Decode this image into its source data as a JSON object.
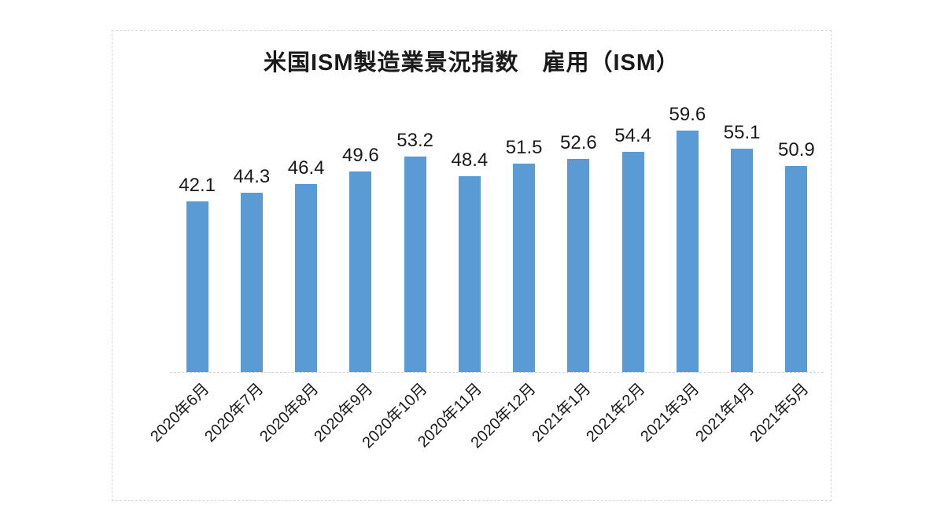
{
  "chart_data": {
    "type": "bar",
    "title": "米国ISM製造業景況指数　雇用（ISM）",
    "categories": [
      "2020年6月",
      "2020年7月",
      "2020年8月",
      "2020年9月",
      "2020年10月",
      "2020年11月",
      "2020年12月",
      "2021年1月",
      "2021年2月",
      "2021年3月",
      "2021年4月",
      "2021年5月"
    ],
    "values": [
      42.1,
      44.3,
      46.4,
      49.6,
      53.2,
      48.4,
      51.5,
      52.6,
      54.4,
      59.6,
      55.1,
      50.9
    ],
    "xlabel": "",
    "ylabel": "",
    "ylim": [
      0,
      70
    ],
    "grid": false,
    "legend": false,
    "data_labels_shown": true,
    "x_tick_rotation_deg": -45,
    "bar_color": "#5B9BD5",
    "axis_line_color": "#D4D4D4",
    "frame_border_color": "#D6D6D6",
    "text_color": "#1A1A1A",
    "background_color": "#FFFFFF"
  }
}
